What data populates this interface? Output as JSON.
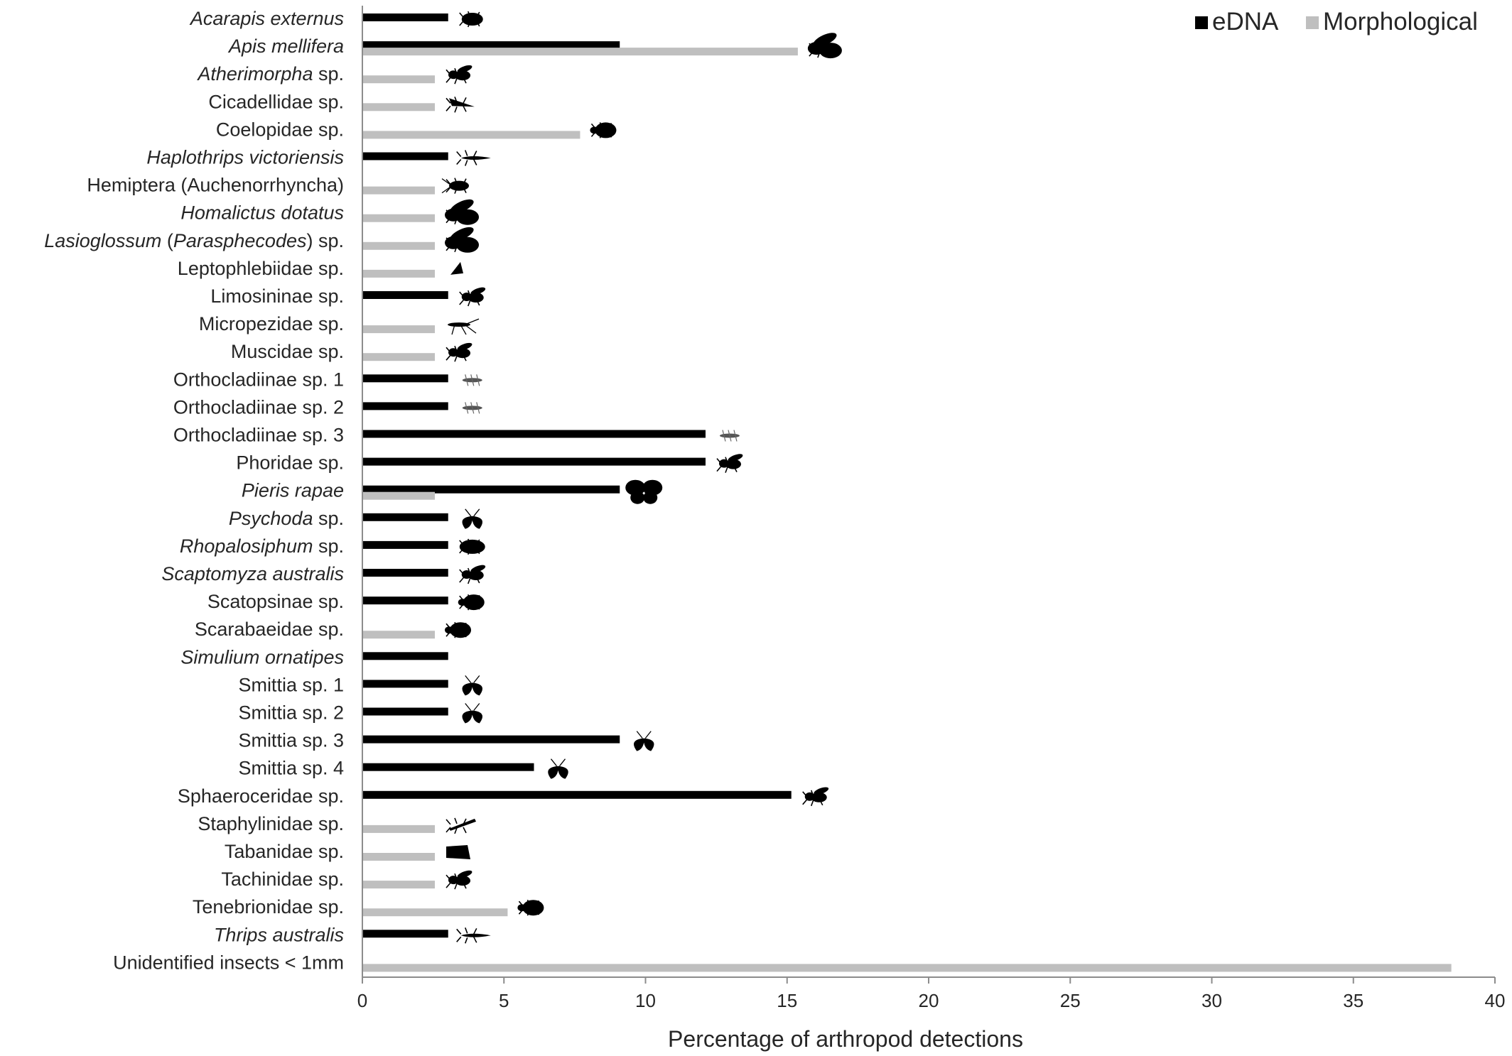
{
  "chart_data": {
    "type": "bar",
    "orientation": "horizontal",
    "xlabel": "Percentage of arthropod detections",
    "ylabel": "",
    "xlim": [
      0,
      40
    ],
    "x_ticks": [
      0,
      5,
      10,
      15,
      20,
      25,
      30,
      35,
      40
    ],
    "grid": false,
    "legend_position": "top-right",
    "categories": [
      [
        {
          "t": "Acarapis externus",
          "i": true
        }
      ],
      [
        {
          "t": "Apis mellifera",
          "i": true
        }
      ],
      [
        {
          "t": "Atherimorpha",
          "i": true
        },
        {
          "t": " sp.",
          "i": false
        }
      ],
      [
        {
          "t": "Cicadellidae sp.",
          "i": false
        }
      ],
      [
        {
          "t": "Coelopidae sp.",
          "i": false
        }
      ],
      [
        {
          "t": "Haplothrips victoriensis",
          "i": true
        }
      ],
      [
        {
          "t": "Hemiptera (Auchenorrhyncha)",
          "i": false
        }
      ],
      [
        {
          "t": "Homalictus dotatus",
          "i": true
        }
      ],
      [
        {
          "t": "Lasioglossum",
          "i": true
        },
        {
          "t": " (",
          "i": false
        },
        {
          "t": "Parasphecodes",
          "i": true
        },
        {
          "t": ") sp.",
          "i": false
        }
      ],
      [
        {
          "t": "Leptophlebiidae sp.",
          "i": false
        }
      ],
      [
        {
          "t": "Limosininae sp.",
          "i": false
        }
      ],
      [
        {
          "t": "Micropezidae sp.",
          "i": false
        }
      ],
      [
        {
          "t": "Muscidae sp.",
          "i": false
        }
      ],
      [
        {
          "t": "Orthocladiinae sp. 1",
          "i": false
        }
      ],
      [
        {
          "t": "Orthocladiinae sp. 2",
          "i": false
        }
      ],
      [
        {
          "t": "Orthocladiinae sp. 3",
          "i": false
        }
      ],
      [
        {
          "t": "Phoridae sp.",
          "i": false
        }
      ],
      [
        {
          "t": "Pieris rapae",
          "i": true
        }
      ],
      [
        {
          "t": "Psychoda",
          "i": true
        },
        {
          "t": " sp.",
          "i": false
        }
      ],
      [
        {
          "t": "Rhopalosiphum",
          "i": true
        },
        {
          "t": " sp.",
          "i": false
        }
      ],
      [
        {
          "t": "Scaptomyza australis",
          "i": true
        }
      ],
      [
        {
          "t": "Scatopsinae sp.",
          "i": false
        }
      ],
      [
        {
          "t": "Scarabaeidae sp.",
          "i": false
        }
      ],
      [
        {
          "t": "Simulium ornatipes",
          "i": true
        }
      ],
      [
        {
          "t": "Smittia sp. 1",
          "i": false
        }
      ],
      [
        {
          "t": "Smittia sp. 2",
          "i": false
        }
      ],
      [
        {
          "t": "Smittia sp. 3",
          "i": false
        }
      ],
      [
        {
          "t": "Smittia sp. 4",
          "i": false
        }
      ],
      [
        {
          "t": "Sphaeroceridae sp.",
          "i": false
        }
      ],
      [
        {
          "t": "Staphylinidae sp.",
          "i": false
        }
      ],
      [
        {
          "t": "Tabanidae sp.",
          "i": false
        }
      ],
      [
        {
          "t": "Tachinidae sp.",
          "i": false
        }
      ],
      [
        {
          "t": "Tenebrionidae sp.",
          "i": false
        }
      ],
      [
        {
          "t": "Thrips australis",
          "i": true
        }
      ],
      [
        {
          "t": "Unidentified insects < 1mm",
          "i": false
        }
      ]
    ],
    "series": [
      {
        "name": "eDNA",
        "color": "#000000",
        "values": [
          3.03,
          9.09,
          0,
          0,
          0,
          3.03,
          0,
          0,
          0,
          0,
          3.03,
          0,
          0,
          3.03,
          3.03,
          12.12,
          12.12,
          9.09,
          3.03,
          3.03,
          3.03,
          3.03,
          0,
          3.03,
          3.03,
          3.03,
          9.09,
          6.06,
          15.15,
          0,
          0,
          0,
          0,
          3.03,
          0
        ]
      },
      {
        "name": "Morphological",
        "color": "#bfbfbf",
        "values": [
          0,
          15.38,
          2.56,
          2.56,
          7.69,
          0,
          2.56,
          2.56,
          2.56,
          2.56,
          0,
          2.56,
          2.56,
          0,
          0,
          0,
          0,
          2.56,
          0,
          0,
          0,
          0,
          2.56,
          0,
          0,
          0,
          0,
          0,
          0,
          2.56,
          2.56,
          2.56,
          5.13,
          0,
          38.46
        ]
      }
    ],
    "silhouettes": [
      "mite",
      "bee",
      "fly",
      "leafhopper",
      "beetle",
      "thrips",
      "bug",
      "bee",
      "bee",
      "mayfly",
      "fly",
      "stilt-fly",
      "fly",
      "midge",
      "midge",
      "midge",
      "fly",
      "butterfly",
      "moth-fly",
      "aphid",
      "fly",
      "beetle",
      "beetle",
      "",
      "moth-fly",
      "moth-fly",
      "moth-fly",
      "moth-fly",
      "fly",
      "rove-beetle",
      "horse-fly",
      "fly",
      "beetle",
      "thrips",
      ""
    ]
  }
}
